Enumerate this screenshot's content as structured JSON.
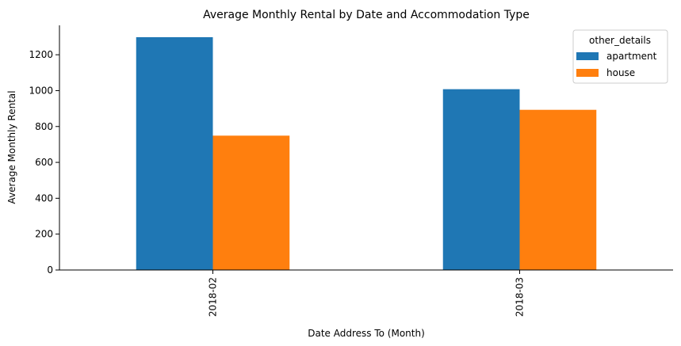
{
  "chart_data": {
    "type": "bar",
    "title": "Average Monthly Rental by Date and Accommodation Type",
    "xlabel": "Date Address To (Month)",
    "ylabel": "Average Monthly Rental",
    "categories": [
      "2018-02",
      "2018-03"
    ],
    "series": [
      {
        "name": "apartment",
        "values": [
          1298,
          1008
        ],
        "color": "#1f77b4"
      },
      {
        "name": "house",
        "values": [
          749,
          893
        ],
        "color": "#ff7f0e"
      }
    ],
    "ylim": [
      0,
      1364
    ],
    "yticks": [
      0,
      200,
      400,
      600,
      800,
      1000,
      1200
    ],
    "legend": {
      "title": "other_details",
      "position": "top-right"
    },
    "grid": false
  }
}
